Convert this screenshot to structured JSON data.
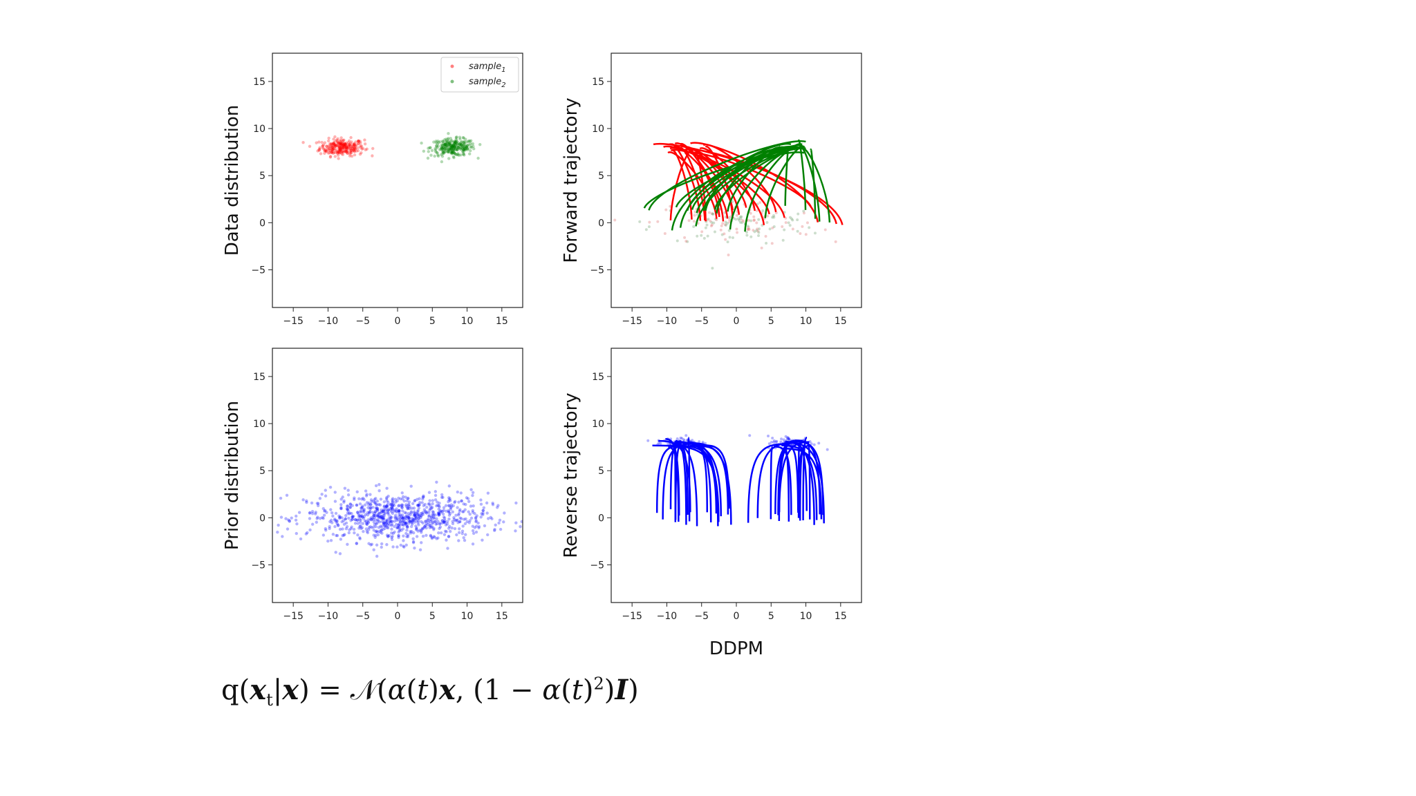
{
  "chart_data": [
    {
      "type": "scatter",
      "ylabel": "Data distribution",
      "xlim": [
        -18,
        18
      ],
      "ylim": [
        -9,
        18
      ],
      "xticks": [
        -15,
        -10,
        -5,
        0,
        5,
        10,
        15
      ],
      "yticks": [
        15,
        10,
        5,
        0,
        -5
      ],
      "legend": {
        "position": "top-right",
        "entries": [
          {
            "name": "sample",
            "subscript": "1",
            "color": "#ff0000"
          },
          {
            "name": "sample",
            "subscript": "2",
            "color": "#008000"
          }
        ]
      },
      "series": [
        {
          "name": "sample1",
          "color": "#ff0000",
          "center": [
            -8,
            8
          ],
          "spread": [
            1.6,
            0.45
          ],
          "count": 260
        },
        {
          "name": "sample2",
          "color": "#008000",
          "center": [
            8,
            8
          ],
          "spread": [
            1.6,
            0.45
          ],
          "count": 260
        }
      ]
    },
    {
      "type": "line",
      "ylabel": "Forward trajectory",
      "xlim": [
        -18,
        18
      ],
      "ylim": [
        -9,
        18
      ],
      "xticks": [
        -15,
        -10,
        -5,
        0,
        5,
        10,
        15
      ],
      "yticks": [
        15,
        10,
        5,
        0,
        -5
      ],
      "series": [
        {
          "color": "#ff0000",
          "start_center": [
            -8,
            8
          ],
          "end_range": [
            -12,
            16
          ],
          "count": 22
        },
        {
          "color": "#008000",
          "start_center": [
            8,
            8
          ],
          "end_range": [
            -14,
            14
          ],
          "count": 22
        }
      ],
      "endpoints_scatter": {
        "center": [
          0,
          0
        ],
        "spread": [
          6,
          1.2
        ],
        "count": 180
      }
    },
    {
      "type": "scatter",
      "ylabel": "Prior distribution",
      "xlim": [
        -18,
        18
      ],
      "ylim": [
        -9,
        18
      ],
      "xticks": [
        -15,
        -10,
        -5,
        0,
        5,
        10,
        15
      ],
      "yticks": [
        15,
        10,
        5,
        0,
        -5
      ],
      "series": [
        {
          "color": "#0000ff",
          "center": [
            0,
            0
          ],
          "spread": [
            6.5,
            1.3
          ],
          "count": 900
        }
      ]
    },
    {
      "type": "line",
      "ylabel": "Reverse trajectory",
      "xlim": [
        -18,
        18
      ],
      "ylim": [
        -9,
        18
      ],
      "xticks": [
        -15,
        -10,
        -5,
        0,
        5,
        10,
        15
      ],
      "yticks": [
        15,
        10,
        5,
        0,
        -5
      ],
      "series": [
        {
          "color": "#0000ff",
          "start_x_range": [
            -12,
            0
          ],
          "end_center": [
            -8,
            8
          ],
          "count": 22
        },
        {
          "color": "#0000ff",
          "start_x_range": [
            1,
            13
          ],
          "end_center": [
            8,
            8
          ],
          "count": 22
        }
      ]
    }
  ],
  "caption": "DDPM",
  "formula": {
    "q": "q",
    "xt": "x",
    "t": "t",
    "x": "x",
    "N": "𝒩",
    "alpha": "α",
    "I": "I"
  }
}
